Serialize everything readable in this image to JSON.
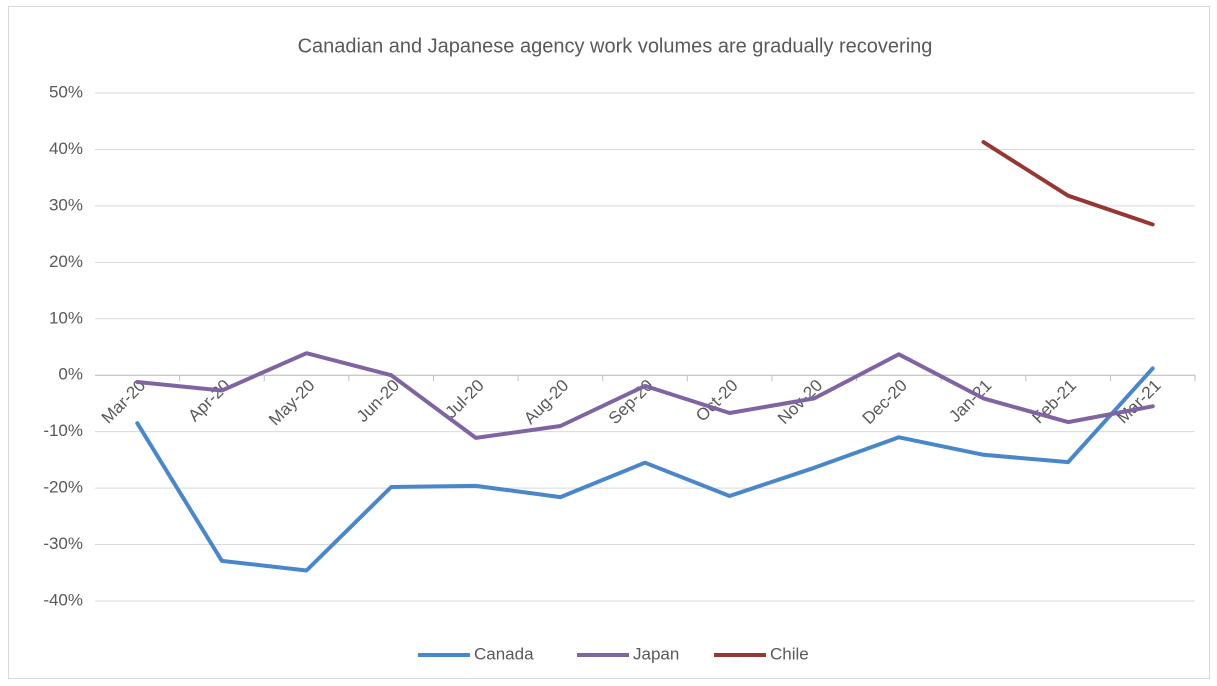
{
  "chart_data": {
    "type": "line",
    "title": "Canadian and Japanese agency work volumes are gradually recovering",
    "categories": [
      "Mar-20",
      "Apr-20",
      "May-20",
      "Jun-20",
      "Jul-20",
      "Aug-20",
      "Sep-20",
      "Oct-20",
      "Nov-20",
      "Dec-20",
      "Jan-21",
      "Feb-21",
      "Mar-21"
    ],
    "series": [
      {
        "name": "Canada",
        "color": "#4a87c9",
        "values": [
          -8.5,
          -32.9,
          -34.6,
          -19.8,
          -19.6,
          -21.6,
          -15.5,
          -21.4,
          -16.4,
          -11,
          -14.1,
          -15.4,
          1.2
        ]
      },
      {
        "name": "Japan",
        "color": "#8064a2",
        "values": [
          -1.2,
          -2.7,
          3.9,
          0,
          -11.1,
          -9,
          -1.9,
          -6.7,
          -4.1,
          3.7,
          -4.1,
          -8.3,
          -5.5
        ]
      },
      {
        "name": "Chile",
        "color": "#953735",
        "values": [
          null,
          null,
          null,
          null,
          null,
          null,
          null,
          null,
          null,
          null,
          41.3,
          31.8,
          26.7
        ]
      }
    ],
    "ylim": [
      -40,
      50
    ],
    "yticks": [
      {
        "value": -40,
        "label": "-40%"
      },
      {
        "value": -30,
        "label": "-30%"
      },
      {
        "value": -20,
        "label": "-20%"
      },
      {
        "value": -10,
        "label": "-10%"
      },
      {
        "value": 0,
        "label": "0%"
      },
      {
        "value": 10,
        "label": "10%"
      },
      {
        "value": 20,
        "label": "20%"
      },
      {
        "value": 30,
        "label": "30%"
      },
      {
        "value": 40,
        "label": "40%"
      },
      {
        "value": 50,
        "label": "50%"
      }
    ],
    "grid": true,
    "legend": "bottom"
  }
}
